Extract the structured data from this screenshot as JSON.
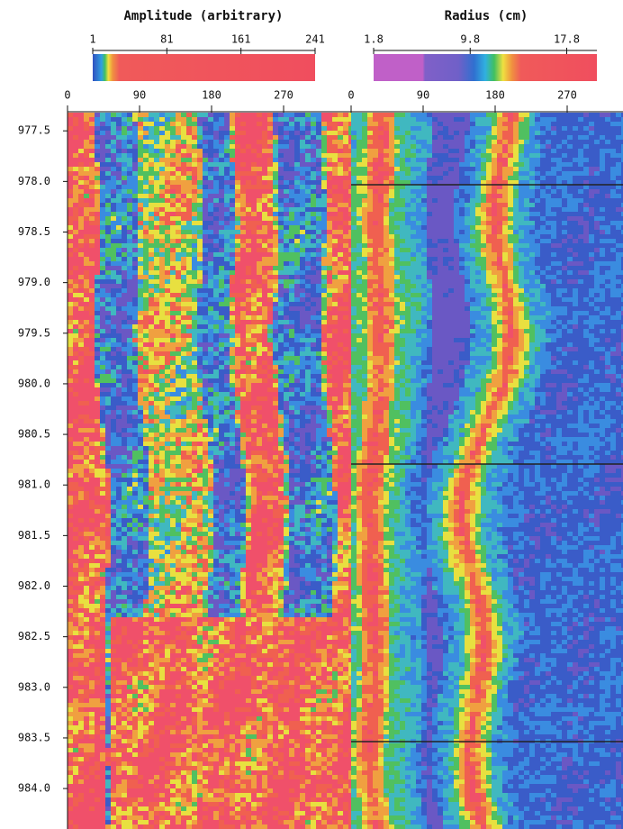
{
  "colorbars": [
    {
      "title": "Amplitude (arbitrary)",
      "xlim": [
        1,
        241
      ],
      "xticks": [
        1,
        81,
        161,
        241
      ]
    },
    {
      "title": "Radius (cm)",
      "xlim": [
        1.8,
        20.3
      ],
      "xticks": [
        1.8,
        9.8,
        17.8
      ]
    }
  ],
  "azimuth_axes": [
    {
      "xlim": [
        0,
        360
      ],
      "xticks": [
        0,
        90,
        180,
        270
      ]
    },
    {
      "xlim": [
        0,
        360
      ],
      "xticks": [
        0,
        90,
        180,
        270
      ]
    }
  ],
  "depth_axis": {
    "ylim": [
      977.32,
      984.4
    ],
    "yticks": [
      977.5,
      {
        "value": 978,
        "label": "978.0"
      },
      978.5,
      {
        "value": 979,
        "label": "979.0"
      },
      979.5,
      {
        "value": 980,
        "label": "980.0"
      },
      980.5,
      {
        "value": 981,
        "label": "981.0"
      },
      981.5,
      {
        "value": 982,
        "label": "982.0"
      },
      982.5,
      {
        "value": 983,
        "label": "983.0"
      },
      983.5,
      {
        "value": 984,
        "label": "984.0"
      }
    ]
  }
}
